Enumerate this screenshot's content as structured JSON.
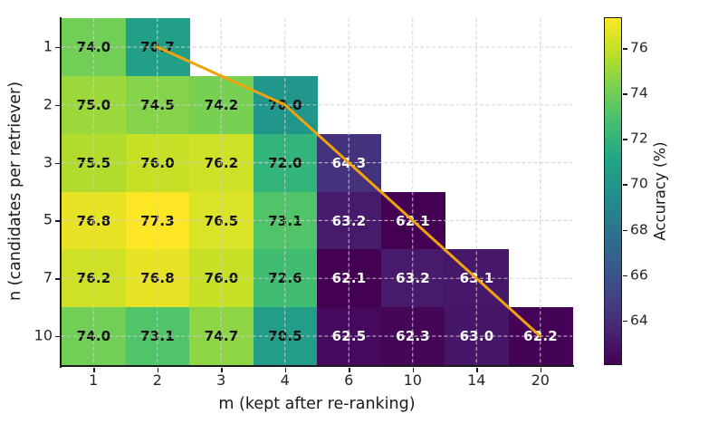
{
  "chart_data": {
    "type": "heatmap",
    "xlabel": "m (kept after re-ranking)",
    "ylabel": "n (candidates per retriever)",
    "colorbar_label": "Accuracy (%)",
    "x_tick_labels": [
      "1",
      "2",
      "3",
      "4",
      "6",
      "10",
      "14",
      "20"
    ],
    "y_tick_labels": [
      "1",
      "2",
      "3",
      "5",
      "7",
      "10"
    ],
    "colorbar_tick_values": [
      64,
      66,
      68,
      70,
      72,
      74,
      76
    ],
    "vmin": 62.1,
    "vmax": 77.3,
    "colormap": "viridis",
    "colormap_stops": [
      [
        0.0,
        "#440154"
      ],
      [
        0.1,
        "#482475"
      ],
      [
        0.2,
        "#414487"
      ],
      [
        0.3,
        "#355f8d"
      ],
      [
        0.4,
        "#2a788e"
      ],
      [
        0.5,
        "#21918c"
      ],
      [
        0.6,
        "#22a884"
      ],
      [
        0.7,
        "#44bf70"
      ],
      [
        0.8,
        "#7ad151"
      ],
      [
        0.9,
        "#bddf26"
      ],
      [
        1.0,
        "#fde725"
      ]
    ],
    "values": [
      [
        74.0,
        70.7,
        null,
        null,
        null,
        null,
        null,
        null
      ],
      [
        75.0,
        74.5,
        74.2,
        70.0,
        null,
        null,
        null,
        null
      ],
      [
        75.5,
        76.0,
        76.2,
        72.0,
        64.3,
        null,
        null,
        null
      ],
      [
        76.8,
        77.3,
        76.5,
        73.1,
        63.2,
        62.1,
        null,
        null
      ],
      [
        76.2,
        76.8,
        76.0,
        72.6,
        62.1,
        63.2,
        63.1,
        null
      ],
      [
        74.0,
        73.1,
        74.7,
        70.5,
        62.5,
        62.3,
        63.0,
        62.2
      ]
    ],
    "annotation_text_threshold": 67,
    "trend_line": {
      "color": "#f0a30c",
      "width": 3,
      "cell_points": [
        [
          1,
          0
        ],
        [
          3,
          1
        ],
        [
          4,
          2
        ],
        [
          5,
          3
        ],
        [
          6,
          4
        ],
        [
          7,
          5
        ]
      ]
    },
    "grid": true,
    "grid_color": "#cfcfcf",
    "background_color": "#ffffff",
    "value_text_dark": "#111111",
    "value_text_light": "#ffffff"
  }
}
